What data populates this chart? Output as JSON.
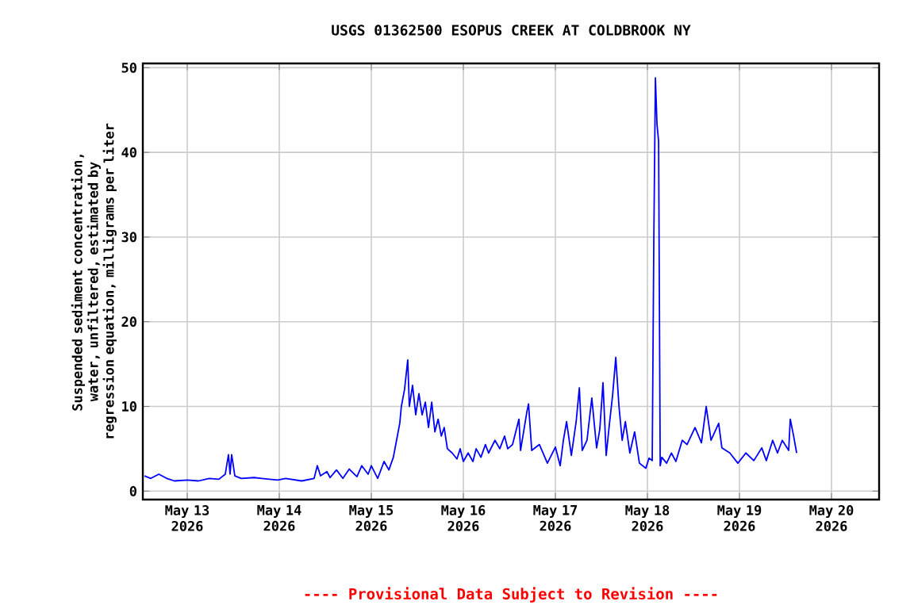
{
  "chart_data": {
    "type": "line",
    "title": "USGS 01362500 ESOPUS CREEK AT COLDBROOK NY",
    "ylabel": "Suspended sediment concentration, water, unfiltered, estimated by regression equation, milligrams per liter",
    "annotations": [
      "---- Provisional Data Subject to Revision ----"
    ],
    "xlim": [
      "2026-05-12T12:25",
      "2026-05-20T12:25"
    ],
    "xticks": [
      {
        "value": "2026-05-13",
        "label": "May 13 2026"
      },
      {
        "value": "2026-05-14",
        "label": "May 14 2026"
      },
      {
        "value": "2026-05-15",
        "label": "May 15 2026"
      },
      {
        "value": "2026-05-16",
        "label": "May 16 2026"
      },
      {
        "value": "2026-05-17",
        "label": "May 17 2026"
      },
      {
        "value": "2026-05-18",
        "label": "May 18 2026"
      },
      {
        "value": "2026-05-19",
        "label": "May 19 2026"
      },
      {
        "value": "2026-05-20",
        "label": "May 20 2026"
      }
    ],
    "ylim": [
      -1,
      50.5
    ],
    "yticks": [
      0,
      10,
      20,
      30,
      40,
      50
    ],
    "grid": true,
    "series": [
      {
        "color": "#0000ff",
        "x": [
          "2026-05-12T12:50",
          "2026-05-12T14:30",
          "2026-05-12T16:35",
          "2026-05-12T18:40",
          "2026-05-12T20:40",
          "2026-05-13T00:00",
          "2026-05-13T02:55",
          "2026-05-13T05:45",
          "2026-05-13T08:15",
          "2026-05-13T09:55",
          "2026-05-13T10:45",
          "2026-05-13T11:10",
          "2026-05-13T11:35",
          "2026-05-13T12:25",
          "2026-05-13T14:05",
          "2026-05-13T17:25",
          "2026-05-13T19:25",
          "2026-05-13T23:35",
          "2026-05-14T01:40",
          "2026-05-14T05:50",
          "2026-05-14T09:05",
          "2026-05-14T09:55",
          "2026-05-14T10:45",
          "2026-05-14T12:25",
          "2026-05-14T13:15",
          "2026-05-14T14:55",
          "2026-05-14T16:35",
          "2026-05-14T18:15",
          "2026-05-14T20:15",
          "2026-05-14T21:30",
          "2026-05-14T23:10",
          "2026-05-15T00:00",
          "2026-05-15T01:40",
          "2026-05-15T03:20",
          "2026-05-15T04:35",
          "2026-05-15T05:45",
          "2026-05-15T06:35",
          "2026-05-15T07:25",
          "2026-05-15T07:50",
          "2026-05-15T08:40",
          "2026-05-15T09:30",
          "2026-05-15T09:55",
          "2026-05-15T10:45",
          "2026-05-15T11:35",
          "2026-05-15T12:25",
          "2026-05-15T13:15",
          "2026-05-15T14:05",
          "2026-05-15T14:55",
          "2026-05-15T15:45",
          "2026-05-15T16:35",
          "2026-05-15T17:25",
          "2026-05-15T18:15",
          "2026-05-15T19:00",
          "2026-05-15T19:50",
          "2026-05-15T21:05",
          "2026-05-15T22:20",
          "2026-05-15T23:10",
          "2026-05-16T00:00",
          "2026-05-16T01:15",
          "2026-05-16T02:30",
          "2026-05-16T03:20",
          "2026-05-16T04:35",
          "2026-05-16T05:45",
          "2026-05-16T06:35",
          "2026-05-16T08:15",
          "2026-05-16T09:30",
          "2026-05-16T10:45",
          "2026-05-16T11:35",
          "2026-05-16T12:50",
          "2026-05-16T14:30",
          "2026-05-16T14:55",
          "2026-05-16T16:35",
          "2026-05-16T17:00",
          "2026-05-16T17:50",
          "2026-05-16T19:50",
          "2026-05-16T21:55",
          "2026-05-17T00:00",
          "2026-05-17T01:15",
          "2026-05-17T02:05",
          "2026-05-17T02:55",
          "2026-05-17T04:10",
          "2026-05-17T05:25",
          "2026-05-17T06:15",
          "2026-05-17T07:00",
          "2026-05-17T08:15",
          "2026-05-17T09:30",
          "2026-05-17T10:45",
          "2026-05-17T11:35",
          "2026-05-17T12:25",
          "2026-05-17T13:15",
          "2026-05-17T14:05",
          "2026-05-17T14:55",
          "2026-05-17T15:45",
          "2026-05-17T16:35",
          "2026-05-17T17:25",
          "2026-05-17T18:15",
          "2026-05-17T19:25",
          "2026-05-17T20:40",
          "2026-05-17T21:55",
          "2026-05-17T23:35",
          "2026-05-18T00:25",
          "2026-05-18T01:15",
          "2026-05-18T01:40",
          "2026-05-18T02:05",
          "2026-05-18T02:30",
          "2026-05-18T02:55",
          "2026-05-18T03:20",
          "2026-05-18T03:45",
          "2026-05-18T05:00",
          "2026-05-18T06:15",
          "2026-05-18T07:25",
          "2026-05-18T09:05",
          "2026-05-18T10:20",
          "2026-05-18T12:25",
          "2026-05-18T14:05",
          "2026-05-18T15:20",
          "2026-05-18T16:35",
          "2026-05-18T18:35",
          "2026-05-18T19:25",
          "2026-05-18T21:30",
          "2026-05-18T23:35",
          "2026-05-19T01:40",
          "2026-05-19T03:45",
          "2026-05-19T05:50",
          "2026-05-19T07:00",
          "2026-05-19T08:40",
          "2026-05-19T09:55",
          "2026-05-19T11:10",
          "2026-05-19T12:50",
          "2026-05-19T13:15",
          "2026-05-19T14:05",
          "2026-05-19T14:55"
        ],
        "values": [
          1.8,
          1.5,
          2.0,
          1.5,
          1.2,
          1.3,
          1.2,
          1.5,
          1.4,
          2.0,
          4.3,
          2.0,
          4.3,
          1.8,
          1.5,
          1.6,
          1.5,
          1.3,
          1.5,
          1.2,
          1.5,
          3.0,
          1.8,
          2.3,
          1.6,
          2.5,
          1.5,
          2.6,
          1.7,
          3.0,
          2.0,
          3.0,
          1.5,
          3.5,
          2.5,
          4.0,
          6.0,
          8.0,
          10.0,
          12.0,
          15.5,
          10.0,
          12.5,
          9.0,
          11.5,
          9.0,
          10.5,
          7.5,
          10.5,
          7.0,
          8.5,
          6.5,
          7.5,
          5.0,
          4.5,
          3.8,
          5.0,
          3.5,
          4.5,
          3.5,
          5.0,
          4.0,
          5.5,
          4.5,
          6.0,
          5.0,
          6.5,
          5.0,
          5.5,
          8.5,
          4.8,
          9.4,
          10.3,
          4.8,
          5.5,
          3.3,
          5.2,
          3.0,
          6.0,
          8.2,
          4.2,
          8.2,
          12.2,
          4.8,
          6.0,
          11.0,
          5.1,
          7.3,
          12.8,
          4.2,
          7.9,
          11.3,
          15.8,
          10.0,
          6.0,
          8.2,
          4.5,
          7.0,
          3.3,
          2.7,
          3.9,
          3.6,
          29.5,
          48.8,
          43.3,
          41.3,
          3.0,
          4.0,
          3.3,
          4.5,
          3.5,
          6.0,
          5.5,
          7.5,
          5.7,
          10.0,
          6.0,
          8.0,
          5.1,
          4.5,
          3.3,
          4.5,
          3.6,
          5.1,
          3.6,
          6.0,
          4.5,
          6.0,
          4.8,
          8.5,
          6.6,
          4.5
        ]
      }
    ]
  }
}
